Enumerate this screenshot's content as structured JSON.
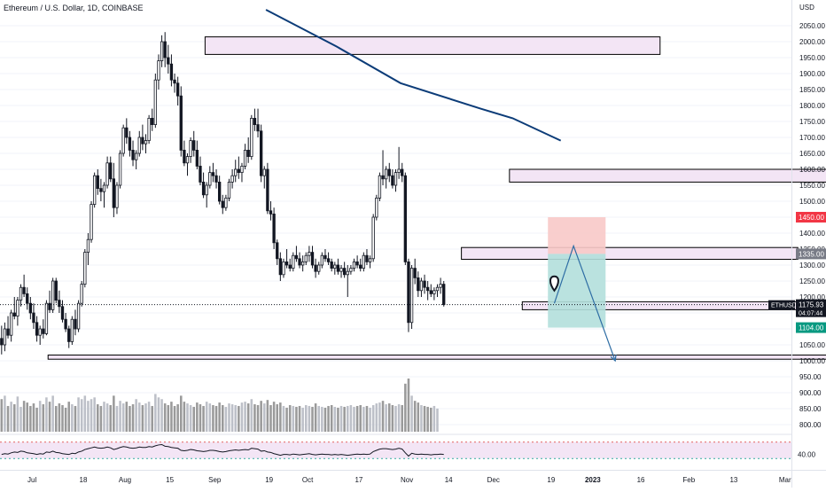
{
  "header": {
    "title": "Ethereum / U.S. Dollar, 1D, COINBASE",
    "currency": "USD"
  },
  "colors": {
    "up": "#ffffff",
    "down": "#131722",
    "wick": "#131722",
    "ma_line": "#0c3c78",
    "zone_fill": "#f3e5f5",
    "zone_stroke": "#000000",
    "stop_fill": "#f8c9c8",
    "target_fill": "#b2dfdb",
    "projection": "#2e6da4",
    "rsi_band": "#f3e5f5",
    "rsi_upper": "#e57373",
    "rsi_lower": "#4db6ac",
    "volume": "#888888",
    "label_red": "#f23645",
    "label_teal": "#089981",
    "label_gray": "#787b86",
    "label_dark": "#131722"
  },
  "chart_data": {
    "type": "candlestick",
    "title": "Ethereum / U.S. Dollar, 1D, COINBASE",
    "ylabel": "USD",
    "ylim": [
      780,
      2100
    ],
    "y_ticks": [
      800,
      850,
      900,
      950,
      1000,
      1050,
      1100,
      1150,
      1200,
      1250,
      1300,
      1350,
      1400,
      1450,
      1500,
      1550,
      1600,
      1650,
      1700,
      1750,
      1800,
      1850,
      1900,
      1950,
      2000,
      2050
    ],
    "x_tick_labels": [
      "Jul",
      "18",
      "Aug",
      "15",
      "Sep",
      "19",
      "Oct",
      "17",
      "Nov",
      "14",
      "Dec",
      "19",
      "2023",
      "16",
      "Feb",
      "13",
      "Mar"
    ],
    "x_tick_bars": [
      10,
      26,
      39,
      53,
      67,
      84,
      96,
      112,
      127,
      140,
      154,
      172,
      185,
      200,
      215,
      229,
      245
    ],
    "bar_range": [
      0,
      247
    ],
    "candles": [
      [
        1070,
        1110,
        1020,
        1050
      ],
      [
        1050,
        1120,
        1030,
        1100
      ],
      [
        1100,
        1140,
        1070,
        1080
      ],
      [
        1080,
        1160,
        1060,
        1150
      ],
      [
        1150,
        1200,
        1130,
        1140
      ],
      [
        1140,
        1200,
        1110,
        1190
      ],
      [
        1190,
        1240,
        1170,
        1230
      ],
      [
        1230,
        1270,
        1200,
        1210
      ],
      [
        1210,
        1230,
        1160,
        1180
      ],
      [
        1180,
        1200,
        1130,
        1150
      ],
      [
        1150,
        1180,
        1100,
        1120
      ],
      [
        1120,
        1140,
        1060,
        1080
      ],
      [
        1080,
        1110,
        1050,
        1100
      ],
      [
        1100,
        1130,
        1070,
        1085
      ],
      [
        1085,
        1190,
        1080,
        1180
      ],
      [
        1180,
        1220,
        1150,
        1160
      ],
      [
        1160,
        1260,
        1150,
        1250
      ],
      [
        1250,
        1260,
        1180,
        1190
      ],
      [
        1190,
        1220,
        1150,
        1170
      ],
      [
        1170,
        1190,
        1120,
        1130
      ],
      [
        1130,
        1150,
        1090,
        1100
      ],
      [
        1100,
        1110,
        1040,
        1060
      ],
      [
        1060,
        1140,
        1050,
        1130
      ],
      [
        1130,
        1160,
        1080,
        1100
      ],
      [
        1100,
        1190,
        1090,
        1180
      ],
      [
        1180,
        1250,
        1170,
        1240
      ],
      [
        1240,
        1350,
        1230,
        1340
      ],
      [
        1340,
        1400,
        1300,
        1380
      ],
      [
        1380,
        1500,
        1370,
        1490
      ],
      [
        1490,
        1590,
        1480,
        1580
      ],
      [
        1580,
        1600,
        1520,
        1540
      ],
      [
        1540,
        1570,
        1500,
        1530
      ],
      [
        1530,
        1560,
        1480,
        1550
      ],
      [
        1550,
        1640,
        1540,
        1620
      ],
      [
        1620,
        1640,
        1560,
        1570
      ],
      [
        1570,
        1620,
        1450,
        1480
      ],
      [
        1480,
        1560,
        1460,
        1550
      ],
      [
        1550,
        1660,
        1540,
        1650
      ],
      [
        1650,
        1740,
        1640,
        1730
      ],
      [
        1730,
        1760,
        1680,
        1700
      ],
      [
        1700,
        1720,
        1640,
        1660
      ],
      [
        1660,
        1690,
        1610,
        1630
      ],
      [
        1630,
        1660,
        1600,
        1650
      ],
      [
        1650,
        1720,
        1640,
        1700
      ],
      [
        1700,
        1740,
        1660,
        1680
      ],
      [
        1680,
        1710,
        1650,
        1690
      ],
      [
        1690,
        1770,
        1680,
        1760
      ],
      [
        1760,
        1790,
        1720,
        1740
      ],
      [
        1740,
        1900,
        1730,
        1880
      ],
      [
        1880,
        1960,
        1850,
        1940
      ],
      [
        1940,
        2020,
        1920,
        2000
      ],
      [
        2000,
        2030,
        1920,
        1950
      ],
      [
        1950,
        1990,
        1900,
        1930
      ],
      [
        1930,
        1960,
        1860,
        1880
      ],
      [
        1880,
        1900,
        1840,
        1870
      ],
      [
        1870,
        1890,
        1800,
        1830
      ],
      [
        1830,
        1860,
        1640,
        1660
      ],
      [
        1660,
        1690,
        1610,
        1620
      ],
      [
        1620,
        1650,
        1580,
        1640
      ],
      [
        1640,
        1700,
        1620,
        1690
      ],
      [
        1690,
        1720,
        1640,
        1660
      ],
      [
        1660,
        1690,
        1600,
        1610
      ],
      [
        1610,
        1640,
        1550,
        1560
      ],
      [
        1560,
        1590,
        1510,
        1520
      ],
      [
        1520,
        1560,
        1480,
        1550
      ],
      [
        1550,
        1610,
        1540,
        1590
      ],
      [
        1590,
        1620,
        1560,
        1580
      ],
      [
        1580,
        1600,
        1540,
        1560
      ],
      [
        1560,
        1580,
        1490,
        1500
      ],
      [
        1500,
        1520,
        1460,
        1480
      ],
      [
        1480,
        1520,
        1470,
        1510
      ],
      [
        1510,
        1570,
        1500,
        1560
      ],
      [
        1560,
        1600,
        1540,
        1580
      ],
      [
        1580,
        1630,
        1560,
        1600
      ],
      [
        1600,
        1640,
        1570,
        1590
      ],
      [
        1590,
        1620,
        1560,
        1610
      ],
      [
        1610,
        1680,
        1600,
        1660
      ],
      [
        1660,
        1700,
        1620,
        1640
      ],
      [
        1640,
        1770,
        1630,
        1760
      ],
      [
        1760,
        1790,
        1720,
        1740
      ],
      [
        1740,
        1790,
        1700,
        1720
      ],
      [
        1720,
        1740,
        1560,
        1580
      ],
      [
        1580,
        1610,
        1540,
        1600
      ],
      [
        1600,
        1620,
        1460,
        1470
      ],
      [
        1470,
        1500,
        1440,
        1460
      ],
      [
        1460,
        1480,
        1350,
        1370
      ],
      [
        1370,
        1380,
        1300,
        1320
      ],
      [
        1320,
        1340,
        1250,
        1270
      ],
      [
        1270,
        1320,
        1260,
        1310
      ],
      [
        1310,
        1350,
        1290,
        1300
      ],
      [
        1300,
        1320,
        1280,
        1290
      ],
      [
        1290,
        1340,
        1280,
        1330
      ],
      [
        1330,
        1360,
        1310,
        1320
      ],
      [
        1320,
        1340,
        1290,
        1300
      ],
      [
        1300,
        1330,
        1280,
        1310
      ],
      [
        1310,
        1340,
        1300,
        1330
      ],
      [
        1330,
        1360,
        1310,
        1340
      ],
      [
        1340,
        1360,
        1290,
        1300
      ],
      [
        1300,
        1320,
        1260,
        1280
      ],
      [
        1280,
        1310,
        1270,
        1300
      ],
      [
        1300,
        1340,
        1290,
        1330
      ],
      [
        1330,
        1350,
        1310,
        1320
      ],
      [
        1320,
        1340,
        1300,
        1310
      ],
      [
        1310,
        1320,
        1280,
        1290
      ],
      [
        1290,
        1310,
        1270,
        1300
      ],
      [
        1300,
        1320,
        1270,
        1280
      ],
      [
        1280,
        1300,
        1260,
        1290
      ],
      [
        1290,
        1310,
        1260,
        1270
      ],
      [
        1270,
        1300,
        1200,
        1280
      ],
      [
        1280,
        1300,
        1270,
        1290
      ],
      [
        1290,
        1320,
        1280,
        1310
      ],
      [
        1310,
        1330,
        1290,
        1300
      ],
      [
        1300,
        1320,
        1280,
        1290
      ],
      [
        1290,
        1340,
        1280,
        1330
      ],
      [
        1330,
        1350,
        1300,
        1310
      ],
      [
        1310,
        1330,
        1290,
        1320
      ],
      [
        1320,
        1460,
        1310,
        1450
      ],
      [
        1450,
        1520,
        1440,
        1510
      ],
      [
        1510,
        1590,
        1500,
        1580
      ],
      [
        1580,
        1660,
        1550,
        1570
      ],
      [
        1570,
        1610,
        1540,
        1600
      ],
      [
        1600,
        1620,
        1560,
        1580
      ],
      [
        1580,
        1600,
        1540,
        1550
      ],
      [
        1550,
        1600,
        1530,
        1590
      ],
      [
        1590,
        1670,
        1570,
        1600
      ],
      [
        1600,
        1620,
        1560,
        1580
      ],
      [
        1580,
        1590,
        1300,
        1310
      ],
      [
        1310,
        1320,
        1090,
        1120
      ],
      [
        1120,
        1300,
        1100,
        1290
      ],
      [
        1290,
        1320,
        1240,
        1260
      ],
      [
        1260,
        1280,
        1200,
        1220
      ],
      [
        1220,
        1260,
        1200,
        1250
      ],
      [
        1250,
        1270,
        1210,
        1230
      ],
      [
        1230,
        1250,
        1190,
        1220
      ],
      [
        1220,
        1240,
        1200,
        1210
      ],
      [
        1210,
        1230,
        1190,
        1220
      ],
      [
        1220,
        1240,
        1200,
        1230
      ],
      [
        1230,
        1260,
        1210,
        1240
      ],
      [
        1240,
        1250,
        1170,
        1176
      ]
    ],
    "volumes": [
      380,
      420,
      300,
      350,
      320,
      410,
      290,
      360,
      340,
      300,
      330,
      280,
      360,
      320,
      400,
      350,
      420,
      300,
      330,
      310,
      280,
      350,
      320,
      300,
      400,
      380,
      420,
      360,
      380,
      400,
      320,
      300,
      350,
      330,
      310,
      420,
      300,
      360,
      330,
      350,
      300,
      320,
      380,
      340,
      310,
      330,
      350,
      300,
      440,
      400,
      380,
      330,
      310,
      350,
      300,
      320,
      420,
      350,
      330,
      310,
      290,
      340,
      320,
      300,
      350,
      330,
      310,
      300,
      340,
      310,
      290,
      330,
      320,
      310,
      300,
      340,
      350,
      330,
      380,
      320,
      310,
      360,
      330,
      370,
      310,
      350,
      320,
      340,
      300,
      280,
      310,
      300,
      290,
      300,
      280,
      310,
      300,
      290,
      330,
      300,
      290,
      280,
      300,
      310,
      290,
      280,
      300,
      290,
      300,
      310,
      290,
      300,
      310,
      290,
      300,
      280,
      310,
      330,
      340,
      360,
      320,
      330,
      310,
      300,
      320,
      310,
      560,
      620,
      420,
      360,
      340,
      310,
      300,
      290,
      280,
      300,
      270
    ],
    "rsi": [
      40,
      42,
      41,
      44,
      46,
      45,
      48,
      47,
      44,
      43,
      42,
      40,
      42,
      41,
      46,
      45,
      48,
      45,
      44,
      42,
      41,
      40,
      43,
      42,
      46,
      48,
      52,
      54,
      56,
      58,
      56,
      55,
      56,
      58,
      56,
      52,
      54,
      57,
      59,
      58,
      56,
      55,
      56,
      58,
      57,
      57,
      59,
      58,
      61,
      63,
      64,
      60,
      59,
      57,
      56,
      55,
      50,
      49,
      50,
      52,
      51,
      49,
      48,
      47,
      48,
      50,
      50,
      49,
      47,
      46,
      47,
      49,
      50,
      51,
      50,
      51,
      52,
      51,
      55,
      54,
      53,
      48,
      49,
      46,
      45,
      42,
      40,
      38,
      40,
      40,
      39,
      41,
      40,
      39,
      40,
      41,
      42,
      40,
      39,
      40,
      41,
      40,
      40,
      39,
      40,
      39,
      40,
      39,
      38,
      39,
      40,
      41,
      40,
      41,
      40,
      41,
      47,
      50,
      53,
      54,
      54,
      53,
      52,
      53,
      55,
      53,
      44,
      36,
      43,
      41,
      40,
      41,
      40,
      40,
      39,
      40,
      40,
      41,
      40
    ],
    "rsi_levels": [
      70,
      30
    ],
    "ma_line": [
      [
        83,
        2100
      ],
      [
        105,
        1985
      ],
      [
        125,
        1870
      ],
      [
        150,
        1790
      ],
      [
        160,
        1760
      ],
      [
        175,
        1690
      ]
    ],
    "zones": [
      {
        "x0": 64,
        "x1": 206,
        "low": 1960,
        "high": 2015
      },
      {
        "x0": 159,
        "x1": 272,
        "low": 1560,
        "high": 1600
      },
      {
        "x0": 144,
        "x1": 249,
        "low": 1318,
        "high": 1355
      },
      {
        "x0": 163,
        "x1": 249,
        "low": 1160,
        "high": 1185
      },
      {
        "x0": 15,
        "x1": 279,
        "low": 1005,
        "high": 1018
      }
    ],
    "position": {
      "x0": 171,
      "x1": 189,
      "entry": 1335,
      "stop": 1450,
      "target": 1104
    },
    "projection_path": [
      [
        173,
        1180
      ],
      [
        179,
        1360
      ],
      [
        192,
        1000
      ]
    ],
    "price_labels": {
      "stop": "1450.00",
      "resistance": "1335.00",
      "symbol": "ETHUSD",
      "last": "1175.93",
      "countdown": "04:07:44",
      "target": "1104.00"
    }
  }
}
